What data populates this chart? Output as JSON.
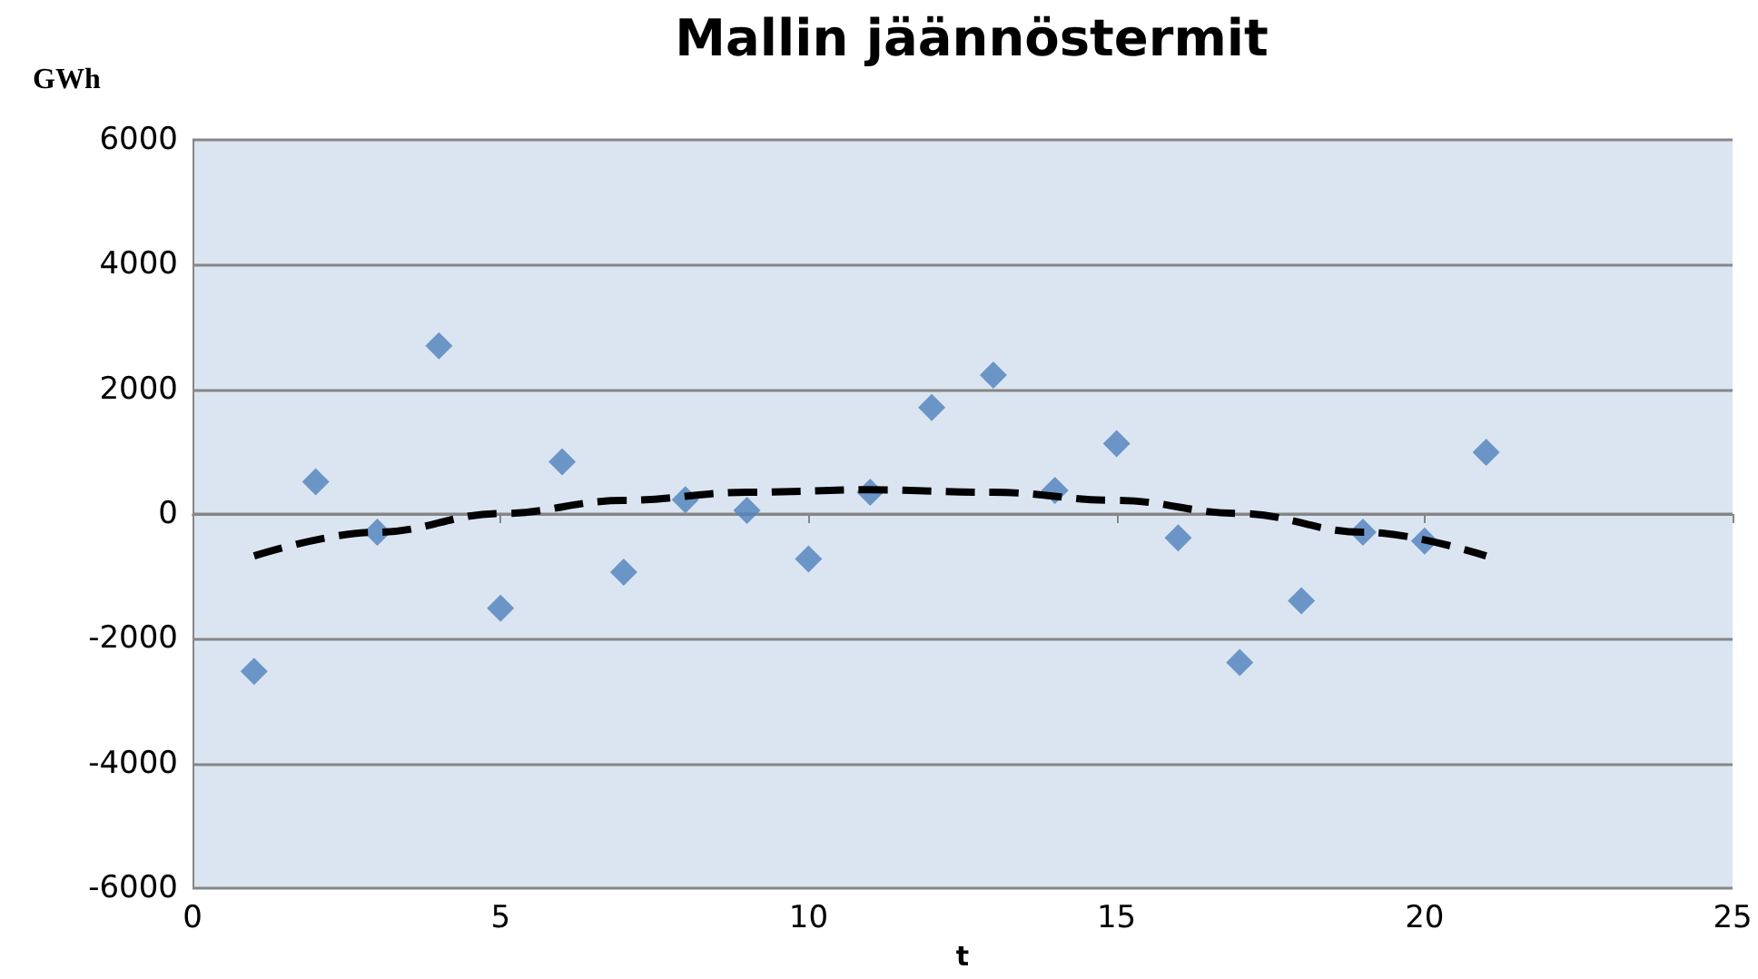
{
  "chart_data": {
    "type": "scatter",
    "title": "Mallin jäännöstermit",
    "xlabel": "t",
    "ylabel": "GWh",
    "xlim": [
      0,
      25
    ],
    "xticks": [
      0,
      5,
      10,
      15,
      20,
      25
    ],
    "ylim": [
      -6000,
      6000
    ],
    "yticks": [
      -6000,
      -4000,
      -2000,
      0,
      2000,
      4000,
      6000
    ],
    "grid": "y",
    "x": [
      1,
      2,
      3,
      4,
      5,
      6,
      7,
      8,
      9,
      10,
      11,
      12,
      13,
      14,
      15,
      16,
      17,
      18,
      19,
      20,
      21
    ],
    "series": [
      {
        "color": "#4f81bd",
        "marker": "diamond",
        "values": [
          -2520,
          520,
          -290,
          2700,
          -1510,
          840,
          -930,
          230,
          60,
          -720,
          350,
          1710,
          2230,
          380,
          1130,
          -380,
          -2380,
          -1390,
          -290,
          -430,
          990
        ]
      },
      {
        "type": "line",
        "color": "#000000",
        "marker": "none",
        "line_style": "dashed",
        "x": [
          1,
          3,
          5,
          7,
          9,
          11,
          13,
          15,
          17,
          19,
          21
        ],
        "values": [
          -670,
          -290,
          10,
          220,
          350,
          390,
          350,
          220,
          10,
          -290,
          -670
        ]
      }
    ]
  }
}
